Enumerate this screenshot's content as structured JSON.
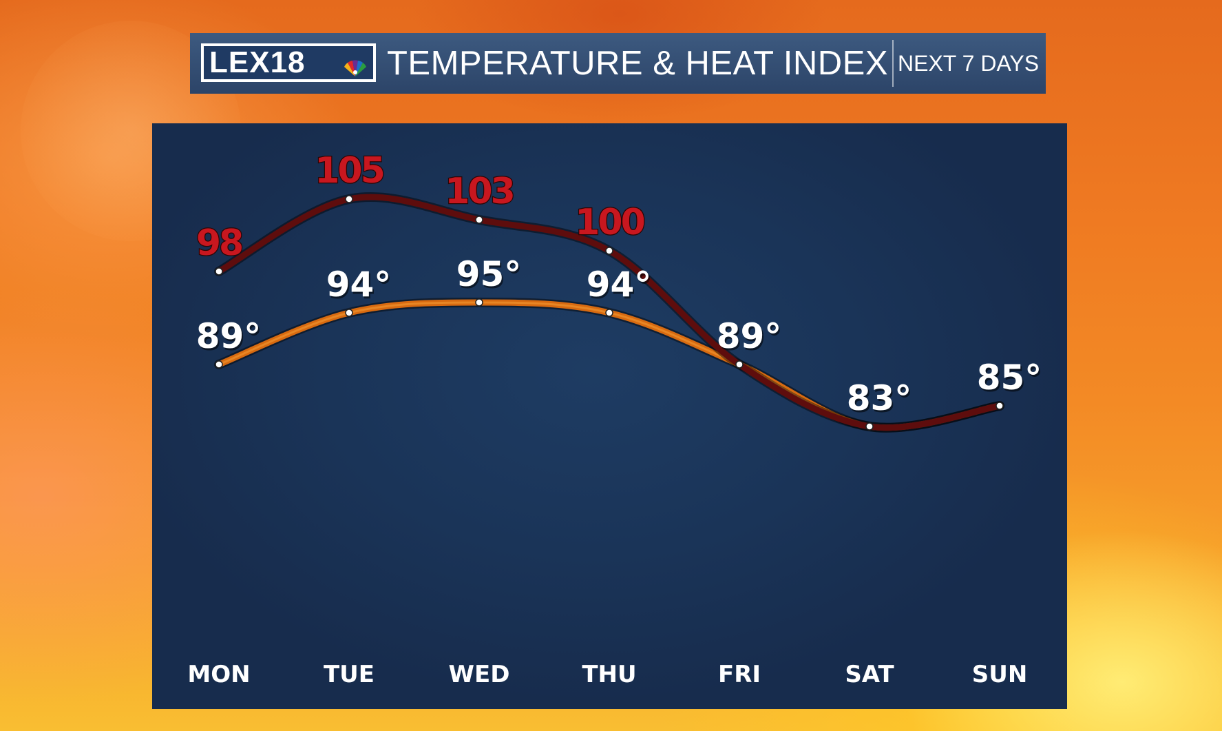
{
  "header": {
    "logo_text": "LEX18",
    "title": "TEMPERATURE & HEAT INDEX",
    "subtitle": "NEXT 7 DAYS"
  },
  "colors": {
    "heat_index_line": "#5e0d0d",
    "heat_index_label": "#c8171f",
    "temperature_line": "#d86a10",
    "panel_background": "#1a3458",
    "header_background": "#34507a"
  },
  "chart_data": {
    "type": "line",
    "categories": [
      "MON",
      "TUE",
      "WED",
      "THU",
      "FRI",
      "SAT",
      "SUN"
    ],
    "series": [
      {
        "values": [
          98,
          105,
          103,
          100,
          89,
          83,
          85
        ],
        "labels": [
          "98",
          "105",
          "103",
          "100",
          "",
          "",
          ""
        ],
        "color": "#5e0d0d"
      },
      {
        "values": [
          89,
          94,
          95,
          94,
          89,
          83,
          85
        ],
        "labels": [
          "89°",
          "94°",
          "95°",
          "94°",
          "89°",
          "83°",
          "85°"
        ],
        "color": "#d86a10"
      }
    ],
    "title": "TEMPERATURE & HEAT INDEX",
    "subtitle": "NEXT 7 DAYS",
    "xlabel": "",
    "ylabel": "",
    "grid": false,
    "legend": "none"
  }
}
